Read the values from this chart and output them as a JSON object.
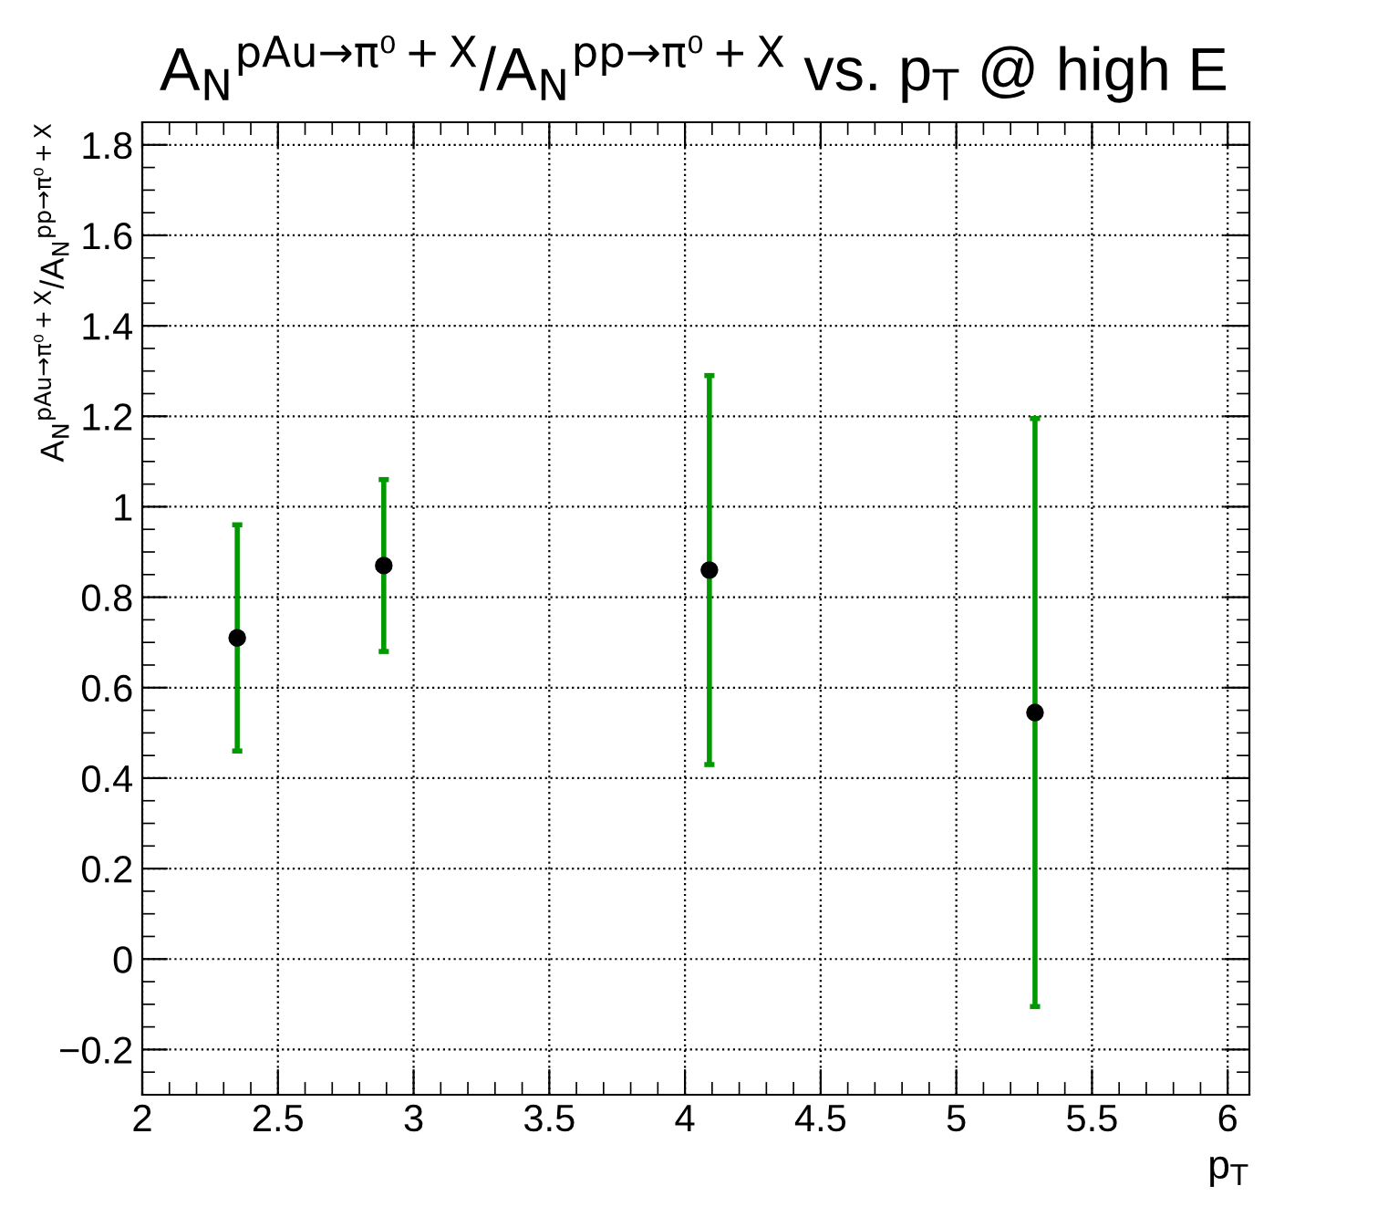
{
  "chart_data": {
    "type": "scatter",
    "title": "A$_{N}$$^{pAu→π⁰+X}$/A$_{N}$$^{pp→π⁰+X}$ vs. p$_{T}$ @ high E",
    "xlabel": "p$_{T}$",
    "ylabel": "A$_{N}$$^{pAu→π⁰+X}$/A$_{N}$$^{pp→π⁰+X}$",
    "x": [
      2.35,
      2.89,
      4.09,
      5.29
    ],
    "series": [
      {
        "color": "#000000",
        "values": [
          0.71,
          0.87,
          0.86,
          0.545
        ],
        "errors": [
          0.25,
          0.19,
          0.43,
          0.65
        ]
      }
    ],
    "xlim": [
      2,
      6.08
    ],
    "xticks": [
      2,
      2.5,
      3,
      3.5,
      4,
      4.5,
      5,
      5.5,
      6
    ],
    "ylim": [
      -0.3,
      1.85
    ],
    "yticks": [
      {
        "value": -0.2,
        "label": "−0.2"
      },
      0,
      0.2,
      0.4,
      0.6,
      0.8,
      1,
      1.2,
      1.4,
      1.6,
      1.8
    ],
    "grid": true,
    "marker": "circle",
    "legend": false
  }
}
